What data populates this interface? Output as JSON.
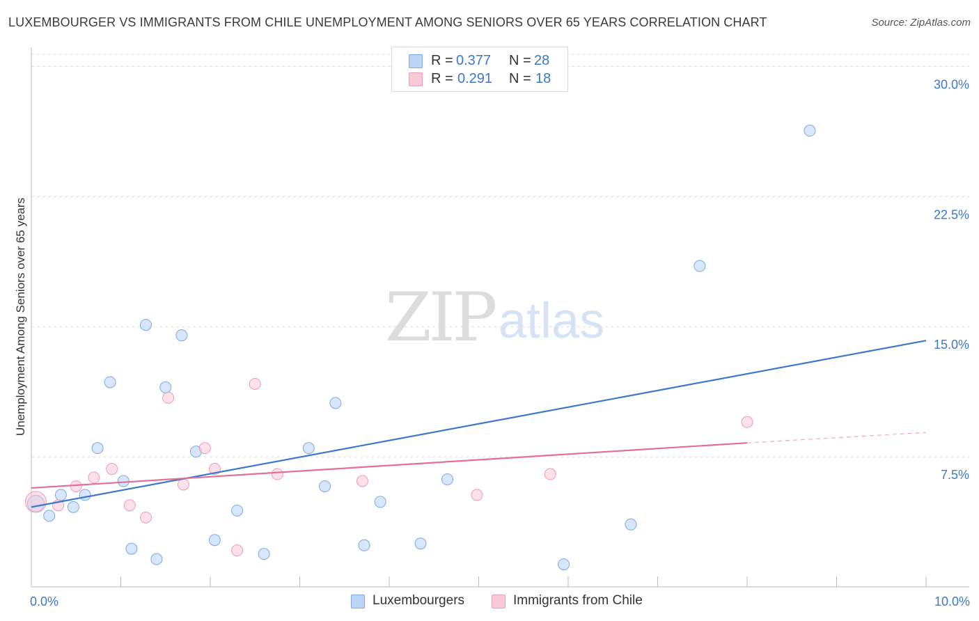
{
  "title": "LUXEMBOURGER VS IMMIGRANTS FROM CHILE UNEMPLOYMENT AMONG SENIORS OVER 65 YEARS CORRELATION CHART",
  "source": "Source: ZipAtlas.com",
  "watermark": {
    "zip": "ZIP",
    "atlas": "atlas"
  },
  "colors": {
    "blue": "#3b78c9",
    "blue_fill": "#bcd5f7",
    "pink": "#e07098",
    "pink_fill": "#f9c9d8",
    "grid": "#dddddd"
  },
  "legend": {
    "r_label": "R =",
    "n_label": "N =",
    "series": [
      {
        "r": "0.377",
        "n": "28"
      },
      {
        "r": "0.291",
        "n": "18"
      }
    ]
  },
  "chart_data": {
    "type": "scatter",
    "title": "LUXEMBOURGER VS IMMIGRANTS FROM CHILE UNEMPLOYMENT AMONG SENIORS OVER 65 YEARS CORRELATION CHART",
    "xlabel": "",
    "ylabel": "Unemployment Among Seniors over 65 years",
    "xlim": [
      0,
      10
    ],
    "ylim": [
      0,
      30.7
    ],
    "x_ticks": [
      {
        "value": 0,
        "label": "0.0%"
      },
      {
        "value": 10,
        "label": "10.0%"
      }
    ],
    "y_ticks": [
      {
        "value": 7.5,
        "label": "7.5%"
      },
      {
        "value": 15,
        "label": "15.0%"
      },
      {
        "value": 22.5,
        "label": "22.5%"
      },
      {
        "value": 30,
        "label": "30.0%"
      }
    ],
    "legend_position": "bottom",
    "series": [
      {
        "name": "Luxembourgers",
        "color": "#3b78c9",
        "points": [
          {
            "x": 0.05,
            "y": 4.8
          },
          {
            "x": 0.2,
            "y": 4.1
          },
          {
            "x": 0.33,
            "y": 5.3
          },
          {
            "x": 0.47,
            "y": 4.6
          },
          {
            "x": 0.6,
            "y": 5.3
          },
          {
            "x": 0.74,
            "y": 8.0
          },
          {
            "x": 0.88,
            "y": 11.8
          },
          {
            "x": 1.03,
            "y": 6.1
          },
          {
            "x": 1.12,
            "y": 2.2
          },
          {
            "x": 1.28,
            "y": 15.1
          },
          {
            "x": 1.4,
            "y": 1.6
          },
          {
            "x": 1.5,
            "y": 11.5
          },
          {
            "x": 1.68,
            "y": 14.5
          },
          {
            "x": 1.84,
            "y": 7.8
          },
          {
            "x": 2.05,
            "y": 2.7
          },
          {
            "x": 2.3,
            "y": 4.4
          },
          {
            "x": 2.6,
            "y": 1.9
          },
          {
            "x": 3.1,
            "y": 8.0
          },
          {
            "x": 3.28,
            "y": 5.8
          },
          {
            "x": 3.4,
            "y": 10.6
          },
          {
            "x": 3.72,
            "y": 2.4
          },
          {
            "x": 3.9,
            "y": 4.9
          },
          {
            "x": 4.35,
            "y": 2.5
          },
          {
            "x": 4.65,
            "y": 6.2
          },
          {
            "x": 5.95,
            "y": 1.3
          },
          {
            "x": 6.7,
            "y": 3.6
          },
          {
            "x": 7.47,
            "y": 18.5
          },
          {
            "x": 8.7,
            "y": 26.3
          }
        ],
        "trend": {
          "x1": 0,
          "y1": 4.6,
          "x2": 10,
          "y2": 14.2
        }
      },
      {
        "name": "Immigrants from Chile",
        "color": "#e07098",
        "points": [
          {
            "x": 0.05,
            "y": 4.9
          },
          {
            "x": 0.3,
            "y": 4.7
          },
          {
            "x": 0.5,
            "y": 5.8
          },
          {
            "x": 0.7,
            "y": 6.3
          },
          {
            "x": 0.9,
            "y": 6.8
          },
          {
            "x": 1.1,
            "y": 4.7
          },
          {
            "x": 1.28,
            "y": 4.0
          },
          {
            "x": 1.53,
            "y": 10.9
          },
          {
            "x": 1.7,
            "y": 5.9
          },
          {
            "x": 1.94,
            "y": 8.0
          },
          {
            "x": 2.05,
            "y": 6.8
          },
          {
            "x": 2.3,
            "y": 2.1
          },
          {
            "x": 2.5,
            "y": 11.7
          },
          {
            "x": 2.75,
            "y": 6.5
          },
          {
            "x": 3.7,
            "y": 6.1
          },
          {
            "x": 4.98,
            "y": 5.3
          },
          {
            "x": 5.8,
            "y": 6.5
          },
          {
            "x": 8.0,
            "y": 9.5
          }
        ],
        "trend": {
          "x1": 0,
          "y1": 5.7,
          "x2": 8.0,
          "y2": 8.3
        },
        "trend_extension": {
          "x1": 8.0,
          "y1": 8.3,
          "x2": 10,
          "y2": 8.9
        }
      }
    ]
  }
}
